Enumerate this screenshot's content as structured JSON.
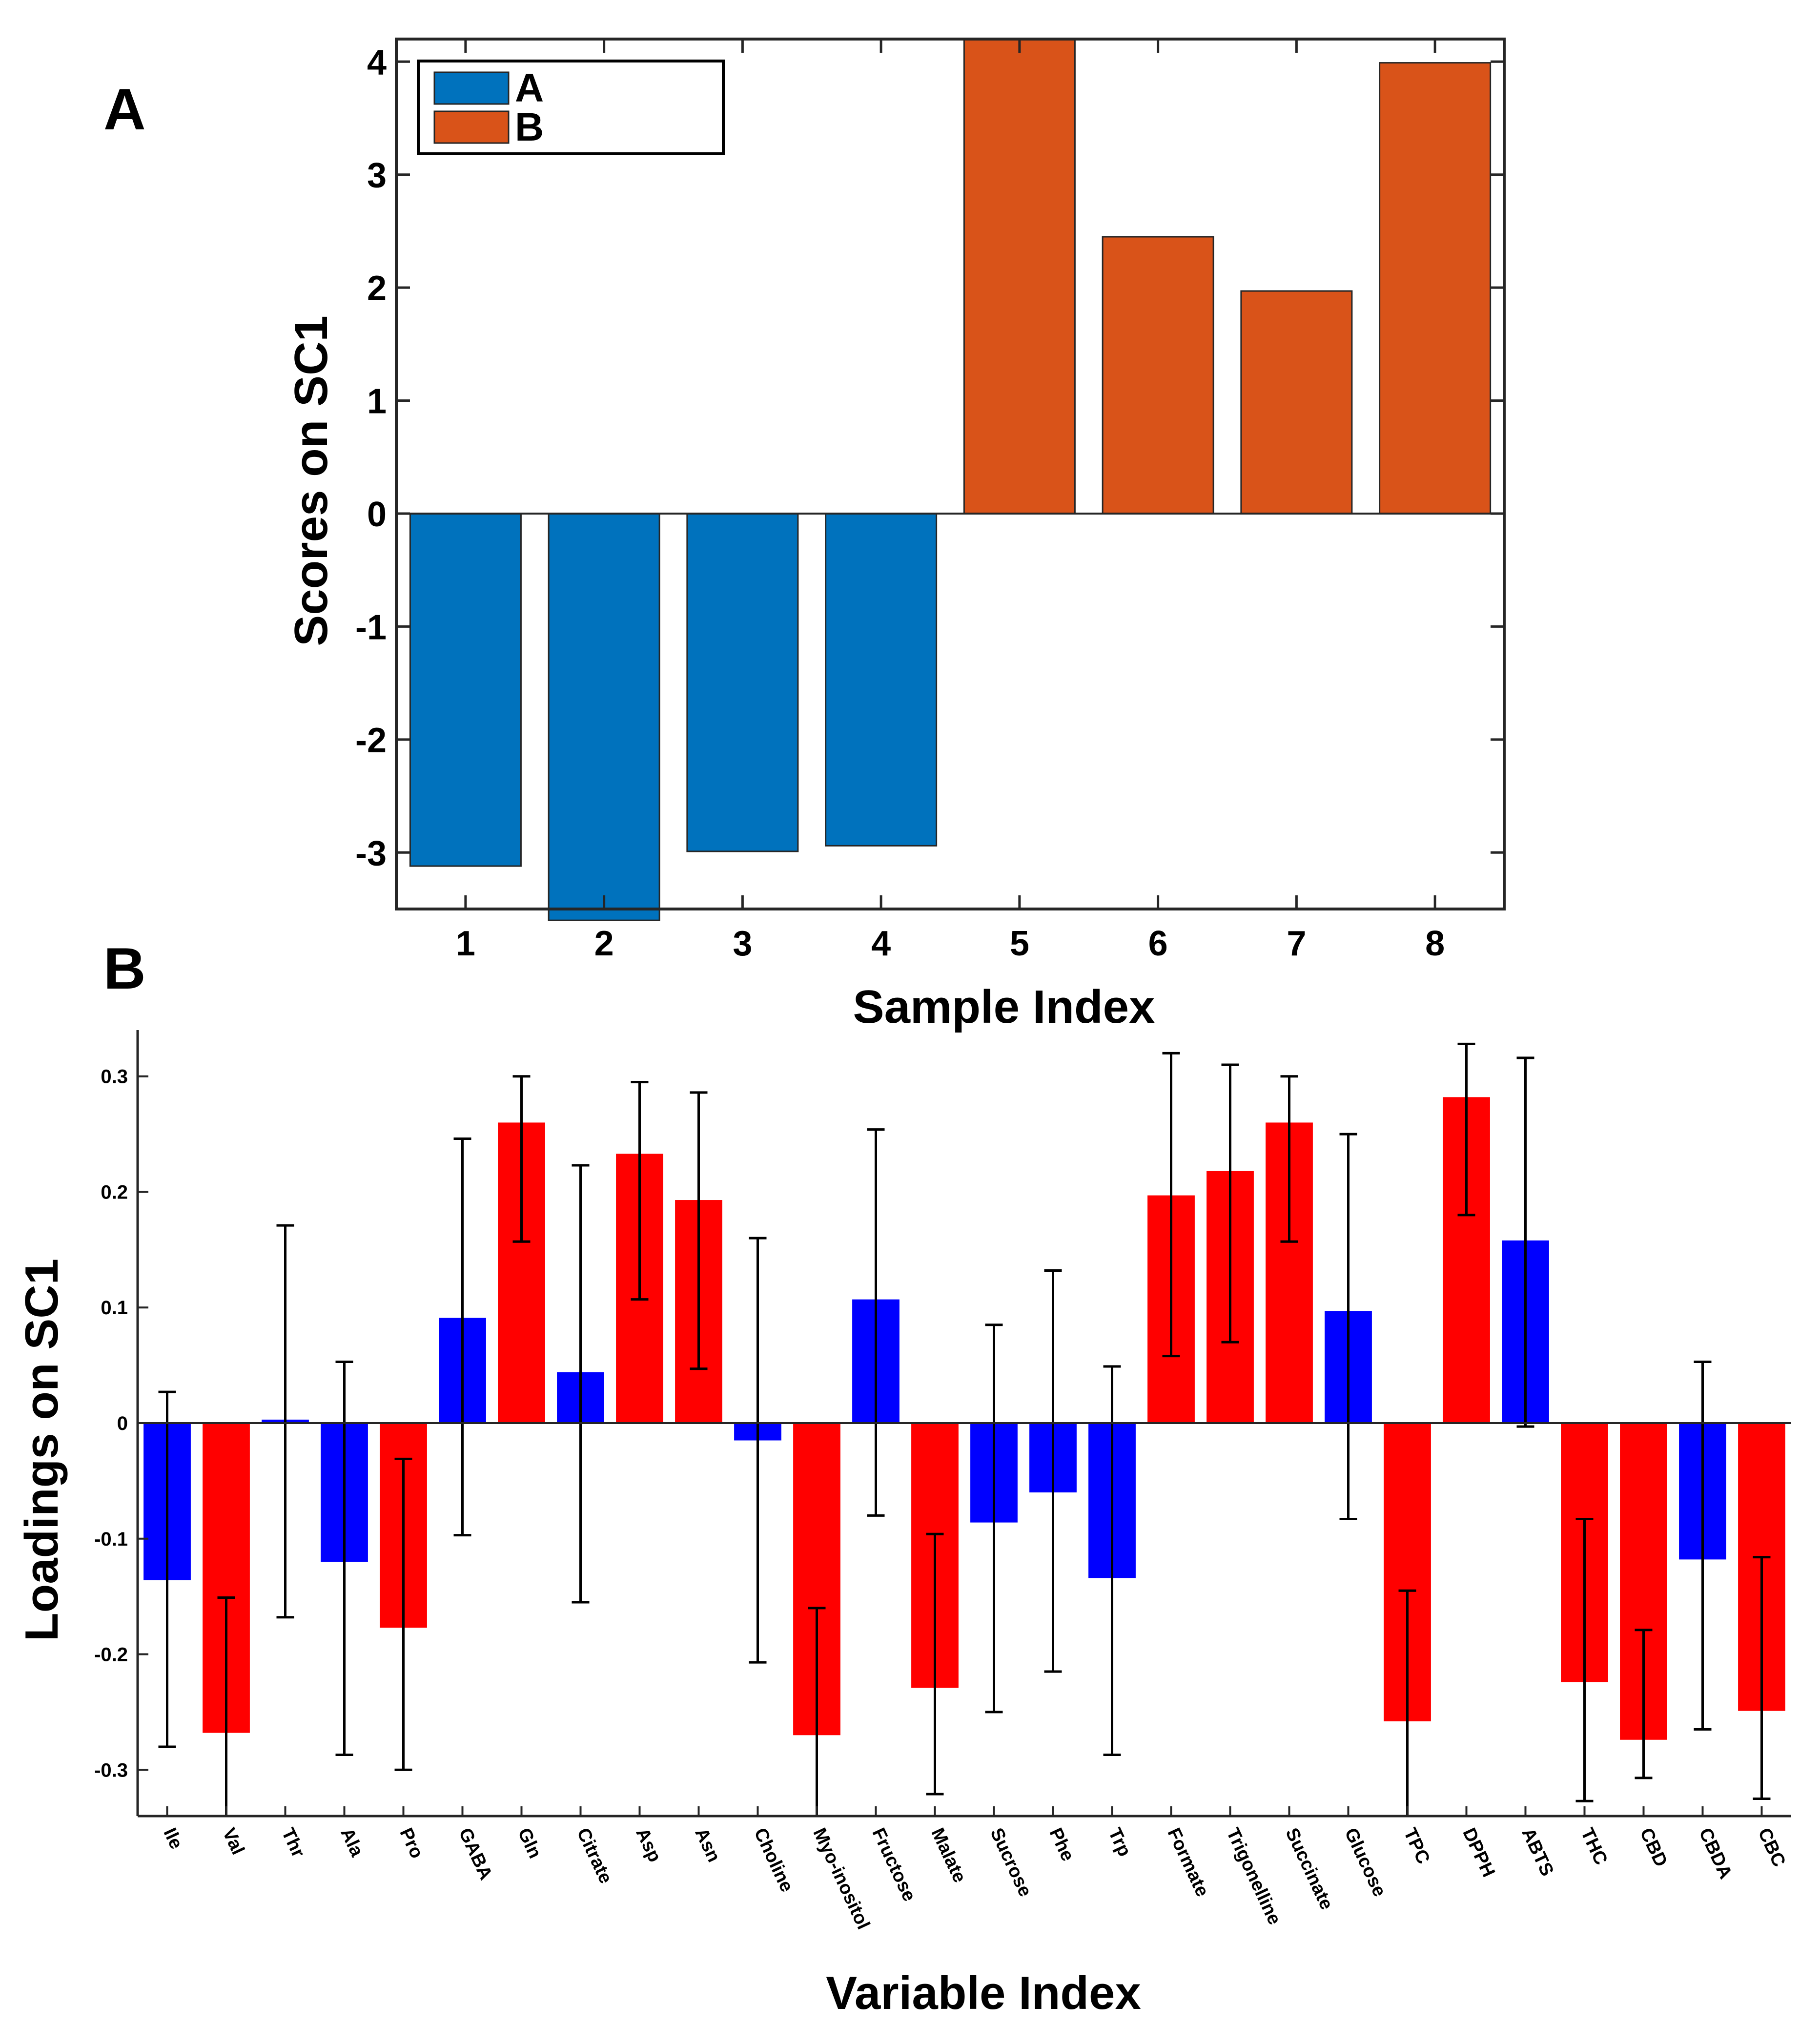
{
  "colors": {
    "groupA": "#0072BD",
    "groupB": "#D95319",
    "negative": "#0000FF",
    "positive": "#FF0000",
    "axis": "#262626",
    "errorbar": "#000000"
  },
  "panels": {
    "a_label": "A",
    "b_label": "B"
  },
  "chart_data": [
    {
      "type": "bar",
      "panel": "A",
      "title": "",
      "xlabel": "Sample Index",
      "ylabel": "Scores on SC1",
      "categories": [
        "1",
        "2",
        "3",
        "4",
        "5",
        "6",
        "7",
        "8"
      ],
      "values": [
        -3.12,
        -3.6,
        -2.99,
        -2.94,
        4.2,
        2.45,
        1.97,
        3.99
      ],
      "groups": [
        "A",
        "A",
        "A",
        "A",
        "B",
        "B",
        "B",
        "B"
      ],
      "legend": [
        "A",
        "B"
      ],
      "legend_position": "top-left",
      "yticks": [
        -3,
        -2,
        -1,
        0,
        1,
        2,
        3,
        4
      ],
      "ylim": [
        -3.5,
        4.2
      ],
      "grid": false
    },
    {
      "type": "bar",
      "panel": "B",
      "title": "",
      "xlabel": "Variable Index",
      "ylabel": "Loadings on SC1",
      "categories": [
        "Ile",
        "Val",
        "Thr",
        "Ala",
        "Pro",
        "GABA",
        "Gln",
        "Citrate",
        "Asp",
        "Asn",
        "Choline",
        "Myo-inositol",
        "Fructose",
        "Malate",
        "Sucrose",
        "Phe",
        "Trp",
        "Formate",
        "Trigonelline",
        "Succinate",
        "Glucose",
        "TPC",
        "DPPH",
        "ABTS",
        "THC",
        "CBD",
        "CBDA",
        "CBC"
      ],
      "values": [
        -0.136,
        -0.268,
        0.003,
        -0.12,
        -0.177,
        0.091,
        0.26,
        0.044,
        0.233,
        0.193,
        -0.015,
        -0.27,
        0.107,
        -0.229,
        -0.086,
        -0.06,
        -0.134,
        0.197,
        0.218,
        0.26,
        0.097,
        -0.258,
        0.282,
        0.158,
        -0.224,
        -0.274,
        -0.118,
        -0.249
      ],
      "err_low": [
        -0.28,
        -0.34,
        -0.168,
        -0.287,
        -0.3,
        -0.097,
        0.157,
        -0.155,
        0.107,
        0.047,
        -0.207,
        -0.34,
        -0.08,
        -0.321,
        -0.25,
        -0.215,
        -0.287,
        0.058,
        0.07,
        0.157,
        -0.083,
        -0.34,
        0.18,
        -0.003,
        -0.327,
        -0.307,
        -0.265,
        -0.325
      ],
      "err_high": [
        0.027,
        -0.151,
        0.171,
        0.053,
        -0.031,
        0.246,
        0.3,
        0.223,
        0.295,
        0.286,
        0.16,
        -0.16,
        0.254,
        -0.096,
        0.085,
        0.132,
        0.049,
        0.32,
        0.31,
        0.3,
        0.25,
        -0.145,
        0.328,
        0.316,
        -0.083,
        -0.179,
        0.053,
        -0.116
      ],
      "yticks": [
        -0.3,
        -0.2,
        -0.1,
        0,
        0.1,
        0.2,
        0.3
      ],
      "ytick_labels": [
        "-0.3",
        "-0.2",
        "-0.1",
        "0",
        "0.1",
        "0.2",
        "0.3"
      ],
      "ylim": [
        -0.34,
        0.34
      ],
      "grid": false
    }
  ]
}
